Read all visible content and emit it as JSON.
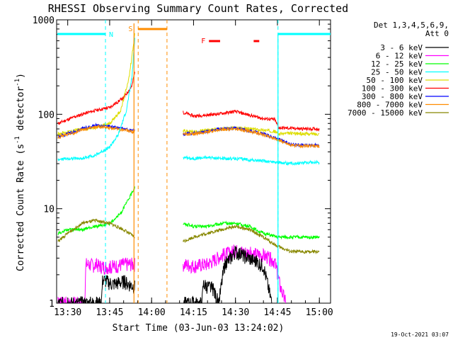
{
  "chart_data": {
    "type": "line",
    "title": "RHESSI Observing Summary Count Rates, Corrected",
    "xlabel": "Start Time (03-Jun-03 13:24:02)",
    "ylabel_main": "Corrected Count Rate (s",
    "ylabel_sup1": "-1",
    "ylabel_mid": " detector",
    "ylabel_sup2": "-1",
    "ylabel_end": ")",
    "footer": "19-Oct-2021 03:07",
    "x_start_minutes": 806.03,
    "x_end_minutes": 904,
    "xlim_labels": [
      "13:30",
      "13:45",
      "14:00",
      "14:15",
      "14:30",
      "14:45",
      "15:00"
    ],
    "xticks_minutes": [
      810,
      825,
      840,
      855,
      870,
      885,
      900
    ],
    "ylim": [
      1,
      1000
    ],
    "yscale": "log",
    "ytick_labels": [
      "1",
      "10",
      "100",
      "1000"
    ],
    "ytick_values": [
      1,
      10,
      100,
      1000
    ],
    "legend": {
      "header1": "Det 1,3,4,5,6,9,",
      "header2": "Att 0",
      "entries": [
        {
          "label": "3 - 6 keV",
          "color": "#000000"
        },
        {
          "label": "6 - 12 keV",
          "color": "#ff00ff"
        },
        {
          "label": "12 - 25 keV",
          "color": "#00ff00"
        },
        {
          "label": "25 - 50 keV",
          "color": "#00ffff"
        },
        {
          "label": "50 - 100 keV",
          "color": "#dddd00"
        },
        {
          "label": "100 - 300 keV",
          "color": "#ff0000"
        },
        {
          "label": "300 - 800 keV",
          "color": "#0000ff"
        },
        {
          "label": "800 - 7000 keV",
          "color": "#ff8c00"
        },
        {
          "label": "7000 - 15000 keV",
          "color": "#888800"
        }
      ]
    },
    "annotations": {
      "night_label": "N",
      "saa_label": "S",
      "flare_label": "F"
    },
    "segments": [
      {
        "from": 806.03,
        "to": 818.5
      },
      {
        "from": 818.5,
        "to": 834.5
      },
      {
        "from": 851.0,
        "to": 904
      }
    ],
    "series": [
      {
        "name": "100 - 300 keV",
        "color": "#ff0000",
        "values": [
          [
            806.5,
            80
          ],
          [
            810,
            88
          ],
          [
            815,
            100
          ],
          [
            820,
            110
          ],
          [
            825,
            118
          ],
          [
            830,
            150
          ],
          [
            833,
            200
          ],
          [
            834,
            290
          ],
          [
            851.2,
            105
          ],
          [
            855,
            96
          ],
          [
            860,
            98
          ],
          [
            865,
            102
          ],
          [
            870,
            107
          ],
          [
            875,
            98
          ],
          [
            880,
            90
          ],
          [
            884,
            88
          ],
          [
            885.5,
            72
          ],
          [
            890,
            71
          ],
          [
            895,
            70
          ],
          [
            900,
            70
          ]
        ]
      },
      {
        "name": "50 - 100 keV",
        "color": "#dddd00",
        "values": [
          [
            806.5,
            62
          ],
          [
            810,
            65
          ],
          [
            815,
            70
          ],
          [
            820,
            72
          ],
          [
            825,
            80
          ],
          [
            829,
            110
          ],
          [
            832,
            250
          ],
          [
            834,
            720
          ],
          [
            851.2,
            67
          ],
          [
            855,
            65
          ],
          [
            860,
            68
          ],
          [
            865,
            70
          ],
          [
            870,
            72
          ],
          [
            875,
            70
          ],
          [
            880,
            68
          ],
          [
            884,
            66
          ],
          [
            885.5,
            62
          ],
          [
            890,
            63
          ],
          [
            895,
            62
          ],
          [
            900,
            62
          ]
        ]
      },
      {
        "name": "300 - 800 keV",
        "color": "#0000ff",
        "values": [
          [
            806.5,
            58
          ],
          [
            810,
            62
          ],
          [
            815,
            70
          ],
          [
            820,
            76
          ],
          [
            825,
            74
          ],
          [
            830,
            70
          ],
          [
            834,
            66
          ],
          [
            851.2,
            62
          ],
          [
            855,
            63
          ],
          [
            860,
            66
          ],
          [
            865,
            70
          ],
          [
            870,
            71
          ],
          [
            875,
            67
          ],
          [
            880,
            62
          ],
          [
            885,
            55
          ],
          [
            890,
            48
          ],
          [
            895,
            47
          ],
          [
            900,
            47
          ]
        ]
      },
      {
        "name": "800 - 7000 keV",
        "color": "#ff8c00",
        "values": [
          [
            806.5,
            57
          ],
          [
            810,
            61
          ],
          [
            815,
            68
          ],
          [
            820,
            74
          ],
          [
            825,
            72
          ],
          [
            830,
            68
          ],
          [
            834,
            65
          ],
          [
            851.2,
            61
          ],
          [
            855,
            62
          ],
          [
            860,
            65
          ],
          [
            865,
            69
          ],
          [
            870,
            70
          ],
          [
            875,
            66
          ],
          [
            880,
            61
          ],
          [
            885,
            54
          ],
          [
            890,
            47
          ],
          [
            895,
            46
          ],
          [
            900,
            46
          ]
        ]
      },
      {
        "name": "25 - 50 keV",
        "color": "#00ffff",
        "values": [
          [
            806.5,
            33
          ],
          [
            810,
            34
          ],
          [
            815,
            34
          ],
          [
            820,
            37
          ],
          [
            825,
            45
          ],
          [
            828,
            60
          ],
          [
            831,
            110
          ],
          [
            833,
            250
          ],
          [
            834,
            650
          ],
          [
            851.2,
            35
          ],
          [
            855,
            34
          ],
          [
            860,
            35
          ],
          [
            865,
            34
          ],
          [
            870,
            34
          ],
          [
            875,
            33
          ],
          [
            880,
            32
          ],
          [
            885,
            31
          ],
          [
            890,
            30
          ],
          [
            895,
            31
          ],
          [
            900,
            31
          ]
        ]
      },
      {
        "name": "12 - 25 keV",
        "color": "#00ff00",
        "values": [
          [
            806.5,
            5.5
          ],
          [
            810,
            6
          ],
          [
            815,
            6
          ],
          [
            820,
            6.5
          ],
          [
            825,
            7
          ],
          [
            829,
            9
          ],
          [
            832,
            13
          ],
          [
            834,
            17
          ],
          [
            851.2,
            7
          ],
          [
            855,
            6.5
          ],
          [
            860,
            6.5
          ],
          [
            865,
            7
          ],
          [
            870,
            7
          ],
          [
            875,
            6.5
          ],
          [
            880,
            5.5
          ],
          [
            885,
            5
          ],
          [
            890,
            5
          ],
          [
            895,
            5
          ],
          [
            900,
            5
          ]
        ]
      },
      {
        "name": "7000 - 15000 keV",
        "color": "#888800",
        "values": [
          [
            806.5,
            4.5
          ],
          [
            810,
            5.5
          ],
          [
            815,
            7
          ],
          [
            820,
            7.5
          ],
          [
            825,
            7
          ],
          [
            830,
            6
          ],
          [
            834,
            5
          ],
          [
            851.2,
            4.5
          ],
          [
            855,
            5
          ],
          [
            860,
            5.5
          ],
          [
            865,
            6
          ],
          [
            870,
            6.5
          ],
          [
            875,
            6
          ],
          [
            880,
            5
          ],
          [
            885,
            4
          ],
          [
            890,
            3.5
          ],
          [
            895,
            3.5
          ],
          [
            900,
            3.5
          ]
        ]
      },
      {
        "name": "6 - 12 keV",
        "color": "#ff00ff",
        "values": [
          [
            806.5,
            1
          ],
          [
            816,
            1
          ],
          [
            816.5,
            2.6
          ],
          [
            821,
            2.5
          ],
          [
            825,
            2.4
          ],
          [
            830,
            2.6
          ],
          [
            834,
            2.6
          ],
          [
            851.2,
            2.6
          ],
          [
            855,
            2.5
          ],
          [
            860,
            2.6
          ],
          [
            865,
            3.2
          ],
          [
            870,
            3.6
          ],
          [
            875,
            3.4
          ],
          [
            880,
            3.2
          ],
          [
            884,
            2.8
          ],
          [
            886,
            1.5
          ],
          [
            888,
            1
          ]
        ]
      },
      {
        "name": "3 - 6 keV",
        "color": "#000000",
        "values": [
          [
            806.5,
            1
          ],
          [
            822,
            1
          ],
          [
            822.5,
            1.8
          ],
          [
            826,
            1.6
          ],
          [
            830,
            1.7
          ],
          [
            834,
            1.5
          ],
          [
            851.2,
            1
          ],
          [
            858,
            1
          ],
          [
            858.5,
            1.6
          ],
          [
            862,
            1.4
          ],
          [
            864,
            1
          ],
          [
            866,
            2.5
          ],
          [
            870,
            3.5
          ],
          [
            875,
            3
          ],
          [
            880,
            2.5
          ],
          [
            883,
            1
          ]
        ]
      }
    ],
    "markers": {
      "night_bars": [
        [
          806.3,
          823.5
        ],
        [
          885.2,
          904
        ]
      ],
      "night_lines": [
        823.5,
        885.2
      ],
      "saa_bars": [
        [
          835.2,
          845.5
        ]
      ],
      "saa_lines": [
        835.2,
        845.5
      ],
      "flare_bars": [
        [
          860.5,
          864.5
        ],
        [
          876.5,
          878.5
        ]
      ],
      "solid_verticals": [
        833.7,
        885.2
      ]
    }
  }
}
